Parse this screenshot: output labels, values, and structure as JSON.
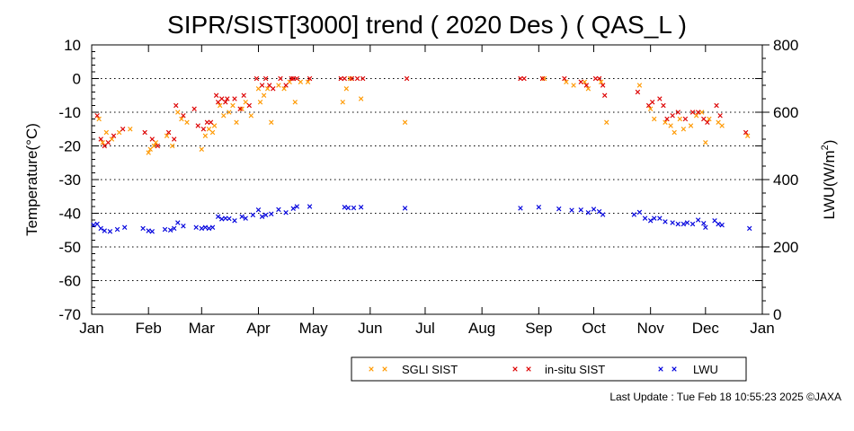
{
  "chart_data": {
    "type": "scatter",
    "title": "SIPR/SIST[3000] trend ( 2020 Des ) ( QAS_L )",
    "ylabel": "Temperature(°C)",
    "y2label_main": "LWU(W/m",
    "y2label_sup": "2",
    "y2label_end": ")",
    "ylim": [
      -70,
      10
    ],
    "y2lim": [
      0,
      800
    ],
    "yticks": [
      "10",
      "0",
      "-10",
      "-20",
      "-30",
      "-40",
      "-50",
      "-60",
      "-70"
    ],
    "y2ticks": [
      "800",
      "600",
      "400",
      "200",
      "0"
    ],
    "x_axis": "2020-01-01 to 2021-01-01",
    "xtick_labels": [
      "Jan",
      "Feb",
      "Mar",
      "Apr",
      "May",
      "Jun",
      "Jul",
      "Aug",
      "Sep",
      "Oct",
      "Nov",
      "Dec",
      "Jan"
    ],
    "grid": "horizontal dotted",
    "legend_placement": "bottom-center",
    "series": [
      {
        "name": "SGLI SIST",
        "axis": "left",
        "color": "#ff9900",
        "points": [
          [
            "2020-01-05",
            -12
          ],
          [
            "2020-01-07",
            -19
          ],
          [
            "2020-01-09",
            -16
          ],
          [
            "2020-01-12",
            -18
          ],
          [
            "2020-01-16",
            -16
          ],
          [
            "2020-01-22",
            -15
          ],
          [
            "2020-02-01",
            -22
          ],
          [
            "2020-02-02",
            -21
          ],
          [
            "2020-02-04",
            -20
          ],
          [
            "2020-02-05",
            -19
          ],
          [
            "2020-02-11",
            -17
          ],
          [
            "2020-02-14",
            -20
          ],
          [
            "2020-02-17",
            -10
          ],
          [
            "2020-02-19",
            -12
          ],
          [
            "2020-02-22",
            -13
          ],
          [
            "2020-03-01",
            -21
          ],
          [
            "2020-03-03",
            -17
          ],
          [
            "2020-03-05",
            -15
          ],
          [
            "2020-03-07",
            -16
          ],
          [
            "2020-03-08",
            -14
          ],
          [
            "2020-03-11",
            -8
          ],
          [
            "2020-03-13",
            -11
          ],
          [
            "2020-03-16",
            -10
          ],
          [
            "2020-03-18",
            -8
          ],
          [
            "2020-03-20",
            -13
          ],
          [
            "2020-03-23",
            -9
          ],
          [
            "2020-03-25",
            -7
          ],
          [
            "2020-03-28",
            -11
          ],
          [
            "2020-04-01",
            -3
          ],
          [
            "2020-04-02",
            -7
          ],
          [
            "2020-04-04",
            -5
          ],
          [
            "2020-04-06",
            -3
          ],
          [
            "2020-04-08",
            -13
          ],
          [
            "2020-04-12",
            -2
          ],
          [
            "2020-04-15",
            -3
          ],
          [
            "2020-04-18",
            -1
          ],
          [
            "2020-04-21",
            -7
          ],
          [
            "2020-04-24",
            -1
          ],
          [
            "2020-04-28",
            -1
          ],
          [
            "2020-05-17",
            -7
          ],
          [
            "2020-05-19",
            -3
          ],
          [
            "2020-05-21",
            0
          ],
          [
            "2020-05-27",
            -6
          ],
          [
            "2020-06-20",
            -13
          ],
          [
            "2020-09-04",
            0
          ],
          [
            "2020-09-16",
            -1
          ],
          [
            "2020-09-20",
            -2
          ],
          [
            "2020-09-26",
            -1
          ],
          [
            "2020-09-28",
            -3
          ],
          [
            "2020-10-05",
            -1
          ],
          [
            "2020-10-08",
            -13
          ],
          [
            "2020-10-26",
            -2
          ],
          [
            "2020-11-01",
            -9
          ],
          [
            "2020-11-03",
            -12
          ],
          [
            "2020-11-09",
            -13
          ],
          [
            "2020-11-12",
            -14
          ],
          [
            "2020-11-14",
            -16
          ],
          [
            "2020-11-17",
            -12
          ],
          [
            "2020-11-19",
            -15
          ],
          [
            "2020-11-23",
            -14
          ],
          [
            "2020-11-26",
            -11
          ],
          [
            "2020-11-29",
            -10
          ],
          [
            "2020-12-01",
            -19
          ],
          [
            "2020-12-03",
            -12
          ],
          [
            "2020-12-08",
            -13
          ],
          [
            "2020-12-10",
            -14
          ],
          [
            "2020-12-24",
            -17
          ]
        ]
      },
      {
        "name": "in-situ SIST",
        "axis": "left",
        "color": "#dd0000",
        "points": [
          [
            "2020-01-04",
            -11
          ],
          [
            "2020-01-06",
            -18
          ],
          [
            "2020-01-08",
            -20
          ],
          [
            "2020-01-10",
            -19
          ],
          [
            "2020-01-13",
            -17
          ],
          [
            "2020-01-18",
            -15
          ],
          [
            "2020-01-30",
            -16
          ],
          [
            "2020-02-03",
            -18
          ],
          [
            "2020-02-06",
            -20
          ],
          [
            "2020-02-12",
            -16
          ],
          [
            "2020-02-15",
            -18
          ],
          [
            "2020-02-16",
            -8
          ],
          [
            "2020-02-20",
            -11
          ],
          [
            "2020-02-26",
            -9
          ],
          [
            "2020-02-28",
            -14
          ],
          [
            "2020-03-02",
            -15
          ],
          [
            "2020-03-04",
            -13
          ],
          [
            "2020-03-06",
            -13
          ],
          [
            "2020-03-09",
            -5
          ],
          [
            "2020-03-10",
            -7
          ],
          [
            "2020-03-12",
            -6
          ],
          [
            "2020-03-14",
            -7
          ],
          [
            "2020-03-15",
            -6
          ],
          [
            "2020-03-19",
            -6
          ],
          [
            "2020-03-22",
            -9
          ],
          [
            "2020-03-24",
            -5
          ],
          [
            "2020-03-27",
            -8
          ],
          [
            "2020-03-31",
            0
          ],
          [
            "2020-04-03",
            -2
          ],
          [
            "2020-04-05",
            0
          ],
          [
            "2020-04-07",
            -2
          ],
          [
            "2020-04-09",
            -3
          ],
          [
            "2020-04-13",
            0
          ],
          [
            "2020-04-16",
            -2
          ],
          [
            "2020-04-19",
            0
          ],
          [
            "2020-04-20",
            0
          ],
          [
            "2020-04-22",
            0
          ],
          [
            "2020-04-29",
            0
          ],
          [
            "2020-05-16",
            0
          ],
          [
            "2020-05-18",
            0
          ],
          [
            "2020-05-22",
            0
          ],
          [
            "2020-05-25",
            0
          ],
          [
            "2020-05-28",
            0
          ],
          [
            "2020-06-21",
            0
          ],
          [
            "2020-08-22",
            0
          ],
          [
            "2020-08-24",
            0
          ],
          [
            "2020-09-03",
            0
          ],
          [
            "2020-09-15",
            0
          ],
          [
            "2020-09-24",
            -1
          ],
          [
            "2020-09-27",
            -2
          ],
          [
            "2020-10-02",
            0
          ],
          [
            "2020-10-04",
            0
          ],
          [
            "2020-10-06",
            -2
          ],
          [
            "2020-10-07",
            -5
          ],
          [
            "2020-10-25",
            -4
          ],
          [
            "2020-10-31",
            -8
          ],
          [
            "2020-11-02",
            -7
          ],
          [
            "2020-11-06",
            -6
          ],
          [
            "2020-11-08",
            -8
          ],
          [
            "2020-11-10",
            -12
          ],
          [
            "2020-11-13",
            -11
          ],
          [
            "2020-11-16",
            -10
          ],
          [
            "2020-11-20",
            -12
          ],
          [
            "2020-11-24",
            -10
          ],
          [
            "2020-11-27",
            -10
          ],
          [
            "2020-11-30",
            -12
          ],
          [
            "2020-12-02",
            -13
          ],
          [
            "2020-12-07",
            -8
          ],
          [
            "2020-12-09",
            -11
          ],
          [
            "2020-12-23",
            -16
          ]
        ]
      },
      {
        "name": "LWU",
        "axis": "right",
        "color": "#0000dd",
        "points": [
          [
            "2020-01-02",
            265
          ],
          [
            "2020-01-04",
            268
          ],
          [
            "2020-01-06",
            255
          ],
          [
            "2020-01-08",
            248
          ],
          [
            "2020-01-11",
            246
          ],
          [
            "2020-01-15",
            252
          ],
          [
            "2020-01-19",
            258
          ],
          [
            "2020-01-29",
            255
          ],
          [
            "2020-02-01",
            248
          ],
          [
            "2020-02-03",
            246
          ],
          [
            "2020-02-10",
            252
          ],
          [
            "2020-02-13",
            250
          ],
          [
            "2020-02-15",
            255
          ],
          [
            "2020-02-17",
            272
          ],
          [
            "2020-02-20",
            262
          ],
          [
            "2020-02-27",
            258
          ],
          [
            "2020-03-01",
            255
          ],
          [
            "2020-03-03",
            258
          ],
          [
            "2020-03-05",
            255
          ],
          [
            "2020-03-07",
            258
          ],
          [
            "2020-03-10",
            290
          ],
          [
            "2020-03-12",
            283
          ],
          [
            "2020-03-14",
            285
          ],
          [
            "2020-03-16",
            284
          ],
          [
            "2020-03-19",
            278
          ],
          [
            "2020-03-23",
            290
          ],
          [
            "2020-03-25",
            285
          ],
          [
            "2020-03-29",
            295
          ],
          [
            "2020-04-01",
            310
          ],
          [
            "2020-04-03",
            290
          ],
          [
            "2020-04-05",
            295
          ],
          [
            "2020-04-08",
            298
          ],
          [
            "2020-04-12",
            311
          ],
          [
            "2020-04-16",
            302
          ],
          [
            "2020-04-20",
            314
          ],
          [
            "2020-04-22",
            320
          ],
          [
            "2020-04-29",
            320
          ],
          [
            "2020-05-18",
            318
          ],
          [
            "2020-05-20",
            316
          ],
          [
            "2020-05-23",
            316
          ],
          [
            "2020-05-27",
            318
          ],
          [
            "2020-06-20",
            315
          ],
          [
            "2020-08-22",
            315
          ],
          [
            "2020-09-01",
            318
          ],
          [
            "2020-09-12",
            313
          ],
          [
            "2020-09-19",
            309
          ],
          [
            "2020-09-24",
            310
          ],
          [
            "2020-09-28",
            302
          ],
          [
            "2020-10-01",
            312
          ],
          [
            "2020-10-04",
            305
          ],
          [
            "2020-10-06",
            296
          ],
          [
            "2020-10-23",
            296
          ],
          [
            "2020-10-26",
            303
          ],
          [
            "2020-10-29",
            285
          ],
          [
            "2020-11-01",
            278
          ],
          [
            "2020-11-03",
            285
          ],
          [
            "2020-11-06",
            285
          ],
          [
            "2020-11-09",
            275
          ],
          [
            "2020-11-13",
            272
          ],
          [
            "2020-11-16",
            268
          ],
          [
            "2020-11-19",
            268
          ],
          [
            "2020-11-21",
            272
          ],
          [
            "2020-11-24",
            268
          ],
          [
            "2020-11-27",
            280
          ],
          [
            "2020-11-30",
            270
          ],
          [
            "2020-12-01",
            258
          ],
          [
            "2020-12-06",
            278
          ],
          [
            "2020-12-08",
            268
          ],
          [
            "2020-12-10",
            265
          ],
          [
            "2020-12-25",
            255
          ]
        ]
      }
    ]
  },
  "footer": {
    "last_update": "Last Update : Tue Feb 18 10:55:23 2025 ©JAXA"
  }
}
